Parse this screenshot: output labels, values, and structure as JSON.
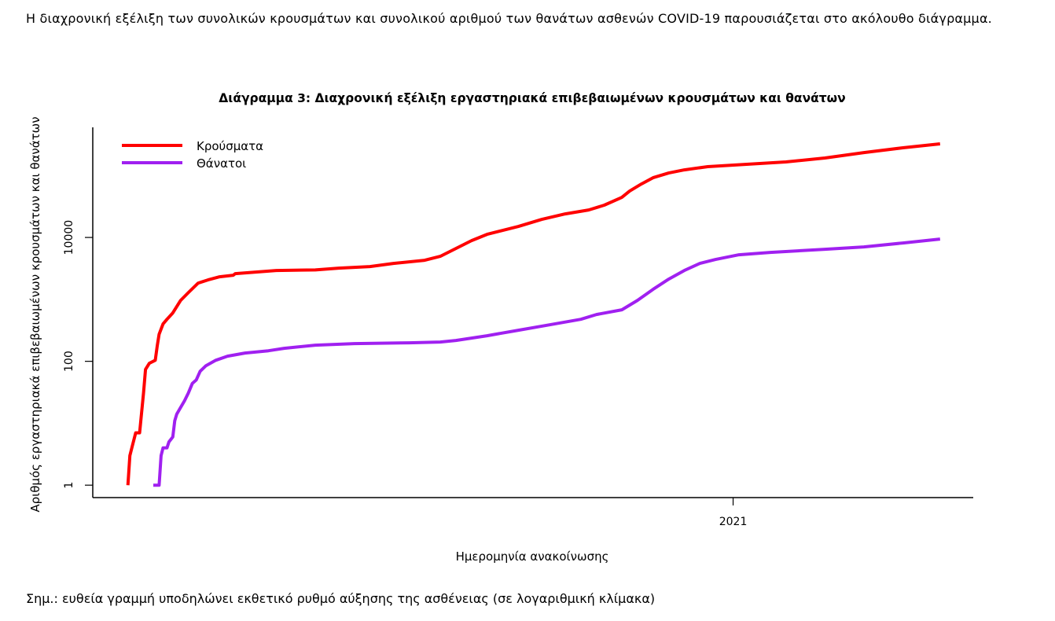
{
  "intro_text": "Η διαχρονική εξέλιξη των συνολικών κρουσμάτων και συνολικού αριθμού των θανάτων ασθενών COVID-19 παρουσιάζεται στο ακόλουθο διάγραμμα.",
  "footnote": "Σημ.: ευθεία γραμμή υποδηλώνει εκθετικό ρυθμό αύξησης της ασθένειας (σε λογαριθμική κλίμακα)",
  "chart_data": {
    "type": "line",
    "title": "Διάγραμμα 3: Διαχρονική εξέλιξη εργαστηριακά επιβεβαιωμένων κρουσμάτων και θανάτων",
    "xlabel": "Ημερομηνία ανακοίνωσης",
    "ylabel": "Αριθμός εργαστηριακά επιβεβαιωμένων κρουσμάτων και θανάτων",
    "x_unit": "days since first case",
    "xlim": [
      -18,
      433
    ],
    "x_ticks": [
      {
        "value": 310,
        "label": "2021"
      }
    ],
    "y_scale": "log",
    "ylim": [
      0.63,
      600000
    ],
    "y_ticks": [
      {
        "value": 1,
        "label": "1"
      },
      {
        "value": 100,
        "label": "100"
      },
      {
        "value": 10000,
        "label": "10000"
      }
    ],
    "grid": false,
    "legend_position": "top-left",
    "series": [
      {
        "name": "Κρούσματα",
        "color": "#ff0000",
        "x": [
          0,
          1,
          2,
          4,
          6,
          8,
          9,
          11,
          14,
          15,
          16,
          18,
          20,
          23,
          25,
          27,
          31,
          36,
          41,
          47,
          54,
          55,
          76,
          96,
          108,
          124,
          136,
          152,
          160,
          168,
          176,
          184,
          192,
          200,
          212,
          224,
          236,
          244,
          253,
          257,
          263,
          269,
          277,
          285,
          297,
          317,
          337,
          357,
          377,
          397,
          416
        ],
        "y": [
          1,
          3,
          4,
          7,
          7,
          31,
          74,
          93,
          104,
          177,
          274,
          401,
          477,
          604,
          764,
          964,
          1291,
          1834,
          2061,
          2317,
          2455,
          2606,
          2929,
          2987,
          3198,
          3388,
          3810,
          4284,
          4955,
          6641,
          8893,
          11240,
          13010,
          15060,
          19600,
          24040,
          27820,
          33180,
          44420,
          56120,
          72990,
          92280,
          109900,
          123600,
          139000,
          151700,
          165600,
          191800,
          235100,
          280500,
          324400
        ]
      },
      {
        "name": "Θάνατοι",
        "color": "#a020f0",
        "x": [
          13,
          16,
          17,
          18,
          20,
          21,
          23,
          24,
          25,
          27,
          29,
          31,
          33,
          35,
          37,
          40,
          45,
          51,
          60,
          72,
          80,
          96,
          116,
          144,
          160,
          168,
          184,
          200,
          216,
          232,
          240,
          253,
          261,
          269,
          277,
          285,
          293,
          301,
          313,
          329,
          357,
          377,
          397,
          416
        ],
        "y": [
          1,
          1,
          3,
          4,
          4,
          5,
          6,
          11,
          14,
          18,
          23,
          31,
          44,
          50,
          69,
          85,
          104,
          121,
          136,
          148,
          162,
          182,
          193,
          199,
          205,
          217,
          259,
          318,
          389,
          477,
          570,
          679,
          964,
          1452,
          2123,
          2929,
          3810,
          4406,
          5255,
          5736,
          6451,
          7040,
          8150,
          9436
        ]
      }
    ]
  }
}
